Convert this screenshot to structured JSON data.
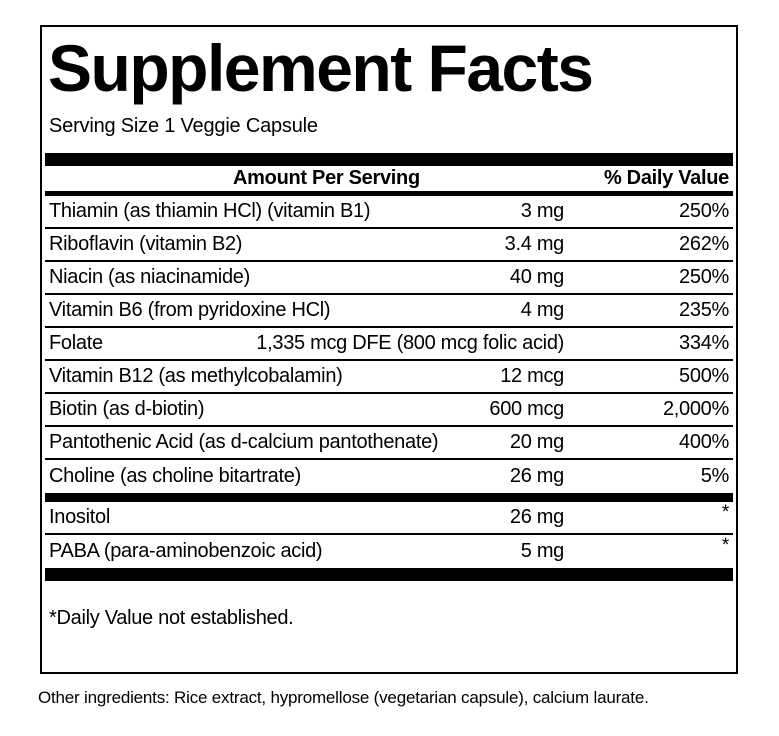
{
  "panel": {
    "title": "Supplement Facts",
    "serving_size": "Serving Size 1 Veggie Capsule",
    "header": {
      "amount": "Amount Per Serving",
      "daily_value": "% Daily Value"
    },
    "rows": [
      {
        "name": "Thiamin (as thiamin HCl) (vitamin B1)",
        "amount": "3 mg",
        "dv": "250%"
      },
      {
        "name": "Riboflavin (vitamin B2)",
        "amount": "3.4 mg",
        "dv": "262%"
      },
      {
        "name": "Niacin (as niacinamide)",
        "amount": "40 mg",
        "dv": "250%"
      },
      {
        "name": "Vitamin B6 (from pyridoxine HCl)",
        "amount": "4 mg",
        "dv": "235%"
      },
      {
        "name": "Folate",
        "amount": "1,335 mcg DFE (800 mcg folic acid)",
        "dv": "334%"
      },
      {
        "name": "Vitamin B12 (as methylcobalamin)",
        "amount": "12 mcg",
        "dv": "500%"
      },
      {
        "name": "Biotin (as d-biotin)",
        "amount": "600 mcg",
        "dv": "2,000%"
      },
      {
        "name": "Pantothenic Acid (as d-calcium pantothenate)",
        "amount": "20 mg",
        "dv": "400%"
      },
      {
        "name": "Choline (as choline bitartrate)",
        "amount": "26 mg",
        "dv": "5%"
      }
    ],
    "no_dv_rows": [
      {
        "name": "Inositol",
        "amount": "26 mg",
        "dv": "*"
      },
      {
        "name": "PABA (para-aminobenzoic acid)",
        "amount": "5 mg",
        "dv": "*"
      }
    ],
    "footnote": "*Daily Value not established."
  },
  "other_ingredients": "Other ingredients: Rice extract, hypromellose (vegetarian capsule), calcium laurate.",
  "colors": {
    "text": "#000000",
    "background": "#ffffff",
    "border": "#000000"
  }
}
